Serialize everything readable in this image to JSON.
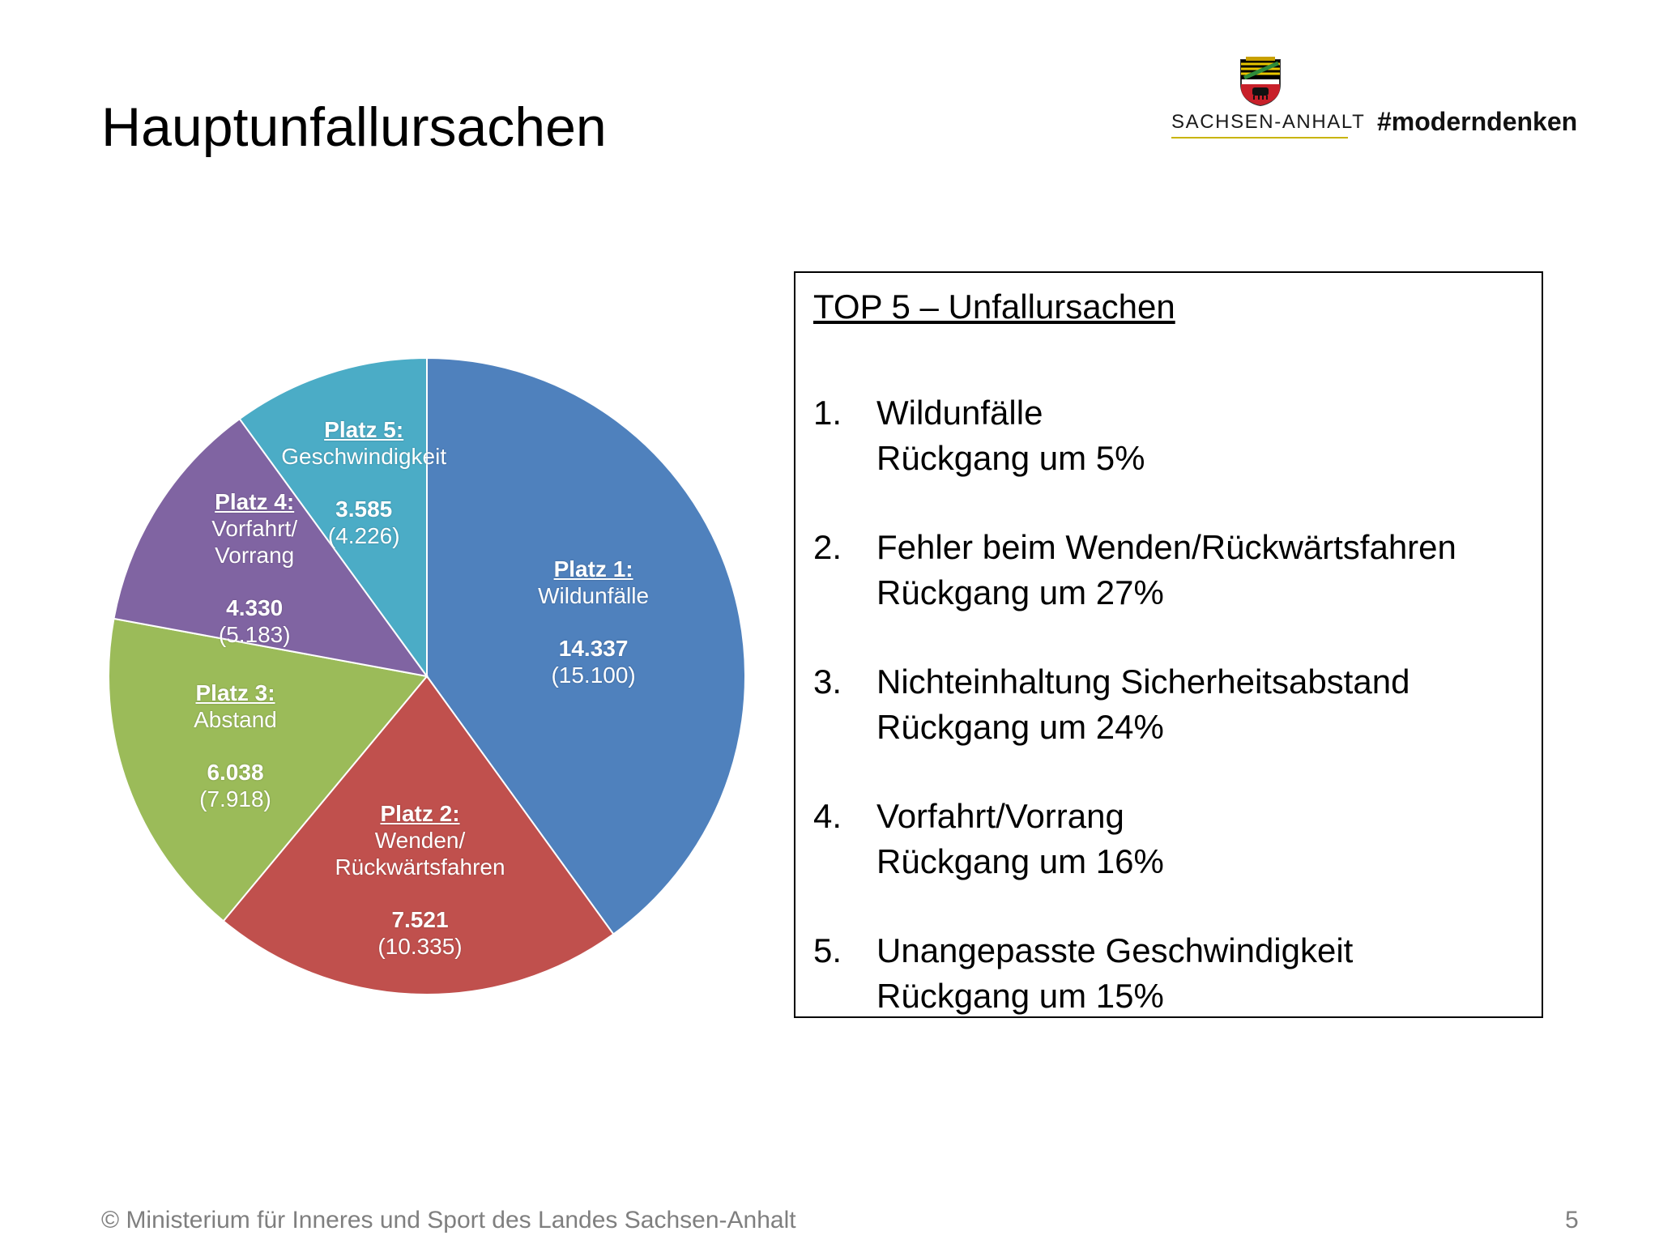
{
  "slide": {
    "title": "Hauptunfallursachen",
    "footer": "© Ministerium für Inneres und Sport des Landes Sachsen-Anhalt",
    "page_number": "5"
  },
  "logo": {
    "state_name": "SACHSEN-ANHALT",
    "hashtag": "#moderndenken"
  },
  "chart_data": {
    "type": "pie",
    "slices": [
      {
        "rank": "Platz 1:",
        "label": "Wildunfälle",
        "value": 14337,
        "value_text": "14.337",
        "previous_text": "(15.100)",
        "color": "#4f81bd"
      },
      {
        "rank": "Platz 2:",
        "label": "Wenden/\nRückwärtsfahren",
        "value": 7521,
        "value_text": "7.521",
        "previous_text": "(10.335)",
        "color": "#c0504d"
      },
      {
        "rank": "Platz 3:",
        "label": "Abstand",
        "value": 6038,
        "value_text": "6.038",
        "previous_text": "(7.918)",
        "color": "#9bbb59"
      },
      {
        "rank": "Platz 4:",
        "label": "Vorfahrt/\nVorrang",
        "value": 4330,
        "value_text": "4.330",
        "previous_text": "(5.183)",
        "color": "#8064a2"
      },
      {
        "rank": "Platz 5:",
        "label": "Geschwindigkeit",
        "value": 3585,
        "value_text": "3.585",
        "previous_text": "(4.226)",
        "color": "#4bacc6"
      }
    ]
  },
  "top5": {
    "heading": "TOP 5 – Unfallursachen",
    "items": [
      {
        "number": "1.",
        "cause": "Wildunfälle",
        "change": "Rückgang um 5%"
      },
      {
        "number": "2.",
        "cause": "Fehler beim Wenden/Rückwärtsfahren",
        "change": "Rückgang um 27%"
      },
      {
        "number": "3.",
        "cause": "Nichteinhaltung Sicherheitsabstand",
        "change": "Rückgang um 24%"
      },
      {
        "number": "4.",
        "cause": "Vorfahrt/Vorrang",
        "change": "Rückgang um 16%"
      },
      {
        "number": "5.",
        "cause": "Unangepasste Geschwindigkeit",
        "change": "Rückgang um 15%"
      }
    ]
  }
}
